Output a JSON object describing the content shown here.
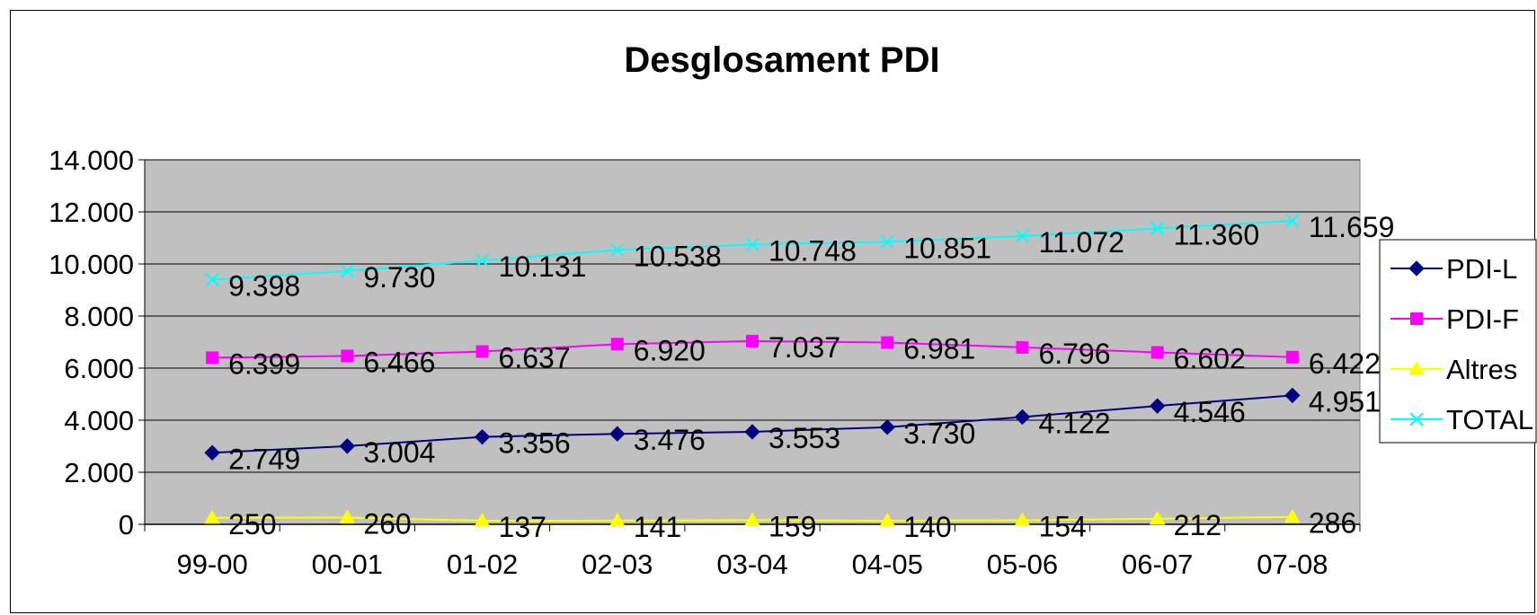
{
  "chart_data": {
    "type": "line",
    "title": "Desglosament PDI",
    "xlabel": "",
    "ylabel": "",
    "categories": [
      "99-00",
      "00-01",
      "01-02",
      "02-03",
      "03-04",
      "04-05",
      "05-06",
      "06-07",
      "07-08"
    ],
    "ylim": [
      0,
      14000
    ],
    "yticks": [
      0,
      2000,
      4000,
      6000,
      8000,
      10000,
      12000,
      14000
    ],
    "ytick_labels": [
      "0",
      "2.000",
      "4.000",
      "6.000",
      "8.000",
      "10.000",
      "12.000",
      "14.000"
    ],
    "grid": true,
    "plot_background": "#c0c0c0",
    "legend_position": "right",
    "series": [
      {
        "name": "PDI-L",
        "color": "#000080",
        "marker": "diamond",
        "values": [
          2749,
          3004,
          3356,
          3476,
          3553,
          3730,
          4122,
          4546,
          4951
        ],
        "labels": [
          "2.749",
          "3.004",
          "3.356",
          "3.476",
          "3.553",
          "3.730",
          "4.122",
          "4.546",
          "4.951"
        ]
      },
      {
        "name": "PDI-F",
        "color": "#ff00ff",
        "marker": "square",
        "values": [
          6399,
          6466,
          6637,
          6920,
          7037,
          6981,
          6796,
          6602,
          6422
        ],
        "labels": [
          "6.399",
          "6.466",
          "6.637",
          "6.920",
          "7.037",
          "6.981",
          "6.796",
          "6.602",
          "6.422"
        ]
      },
      {
        "name": "Altres",
        "color": "#ffff00",
        "marker": "triangle",
        "values": [
          250,
          260,
          137,
          141,
          159,
          140,
          154,
          212,
          286
        ],
        "labels": [
          "250",
          "260",
          "137",
          "141",
          "159",
          "140",
          "154",
          "212",
          "286"
        ]
      },
      {
        "name": "TOTAL",
        "color": "#00ffff",
        "marker": "x",
        "values": [
          9398,
          9730,
          10131,
          10538,
          10748,
          10851,
          11072,
          11360,
          11659
        ],
        "labels": [
          "9.398",
          "9.730",
          "10.131",
          "10.538",
          "10.748",
          "10.851",
          "11.072",
          "11.360",
          "11.659"
        ]
      }
    ]
  }
}
